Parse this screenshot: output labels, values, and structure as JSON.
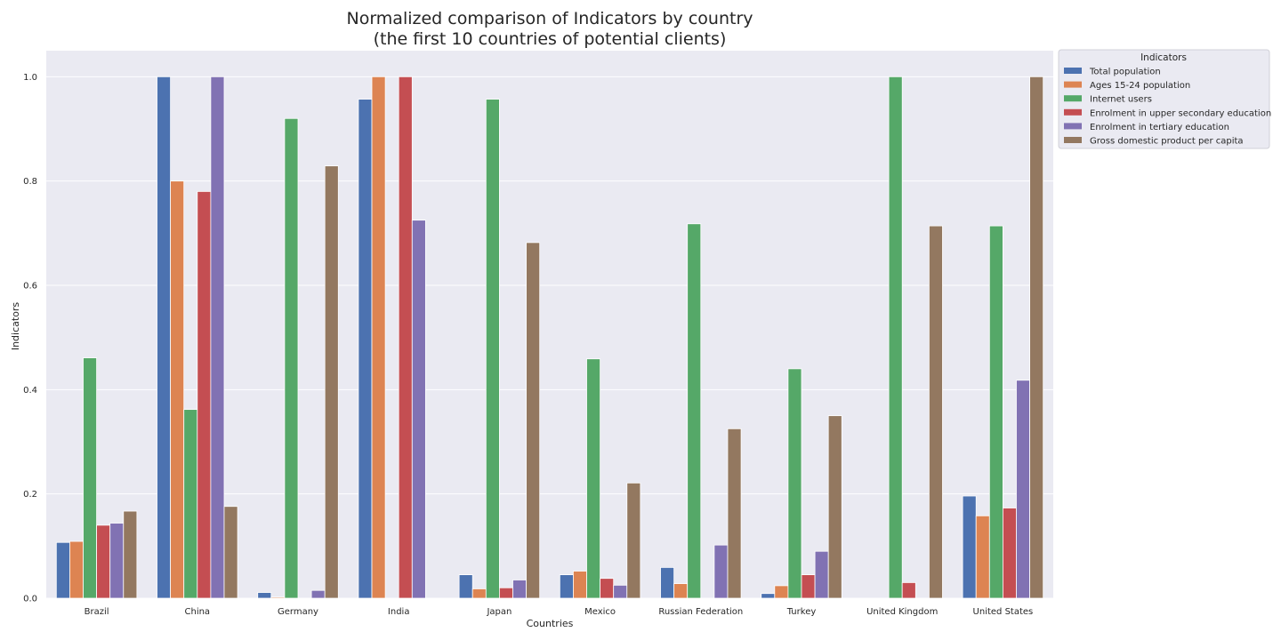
{
  "chart_data": {
    "type": "bar",
    "title": "Normalized comparison of Indicators by country",
    "subtitle": "(the first 10 countries of potential clients)",
    "xlabel": "Countries",
    "ylabel": "Indicators",
    "ylim": [
      0,
      1.05
    ],
    "yticks": [
      "0.0",
      "0.2",
      "0.4",
      "0.6",
      "0.8",
      "1.0"
    ],
    "grid": true,
    "legend": {
      "title": "Indicators",
      "placement": "outside-top-right"
    },
    "categories": [
      "Brazil",
      "China",
      "Germany",
      "India",
      "Japan",
      "Mexico",
      "Russian Federation",
      "Turkey",
      "United Kingdom",
      "United States"
    ],
    "series": [
      {
        "name": "Total population",
        "color": "#4c72b0",
        "values": [
          0.107,
          1.0,
          0.011,
          0.957,
          0.045,
          0.045,
          0.059,
          0.009,
          0.0,
          0.196
        ]
      },
      {
        "name": "Ages 15-24 population",
        "color": "#dd8452",
        "values": [
          0.109,
          0.8,
          0.002,
          1.0,
          0.018,
          0.052,
          0.028,
          0.024,
          0.0,
          0.158
        ]
      },
      {
        "name": "Internet users",
        "color": "#55a868",
        "values": [
          0.461,
          0.362,
          0.92,
          0.0,
          0.957,
          0.459,
          0.718,
          0.44,
          1.0,
          0.714
        ]
      },
      {
        "name": "Enrolment in upper secondary education",
        "color": "#c44e52",
        "values": [
          0.14,
          0.78,
          0.0,
          1.0,
          0.02,
          0.038,
          0.0,
          0.045,
          0.03,
          0.173
        ]
      },
      {
        "name": "Enrolment in tertiary education",
        "color": "#8172b3",
        "values": [
          0.144,
          1.0,
          0.015,
          0.725,
          0.035,
          0.025,
          0.102,
          0.09,
          0.0,
          0.418
        ]
      },
      {
        "name": "Gross domestic product per capita",
        "color": "#937860",
        "values": [
          0.167,
          0.176,
          0.829,
          0.0,
          0.682,
          0.221,
          0.325,
          0.35,
          0.714,
          1.0
        ]
      }
    ]
  }
}
